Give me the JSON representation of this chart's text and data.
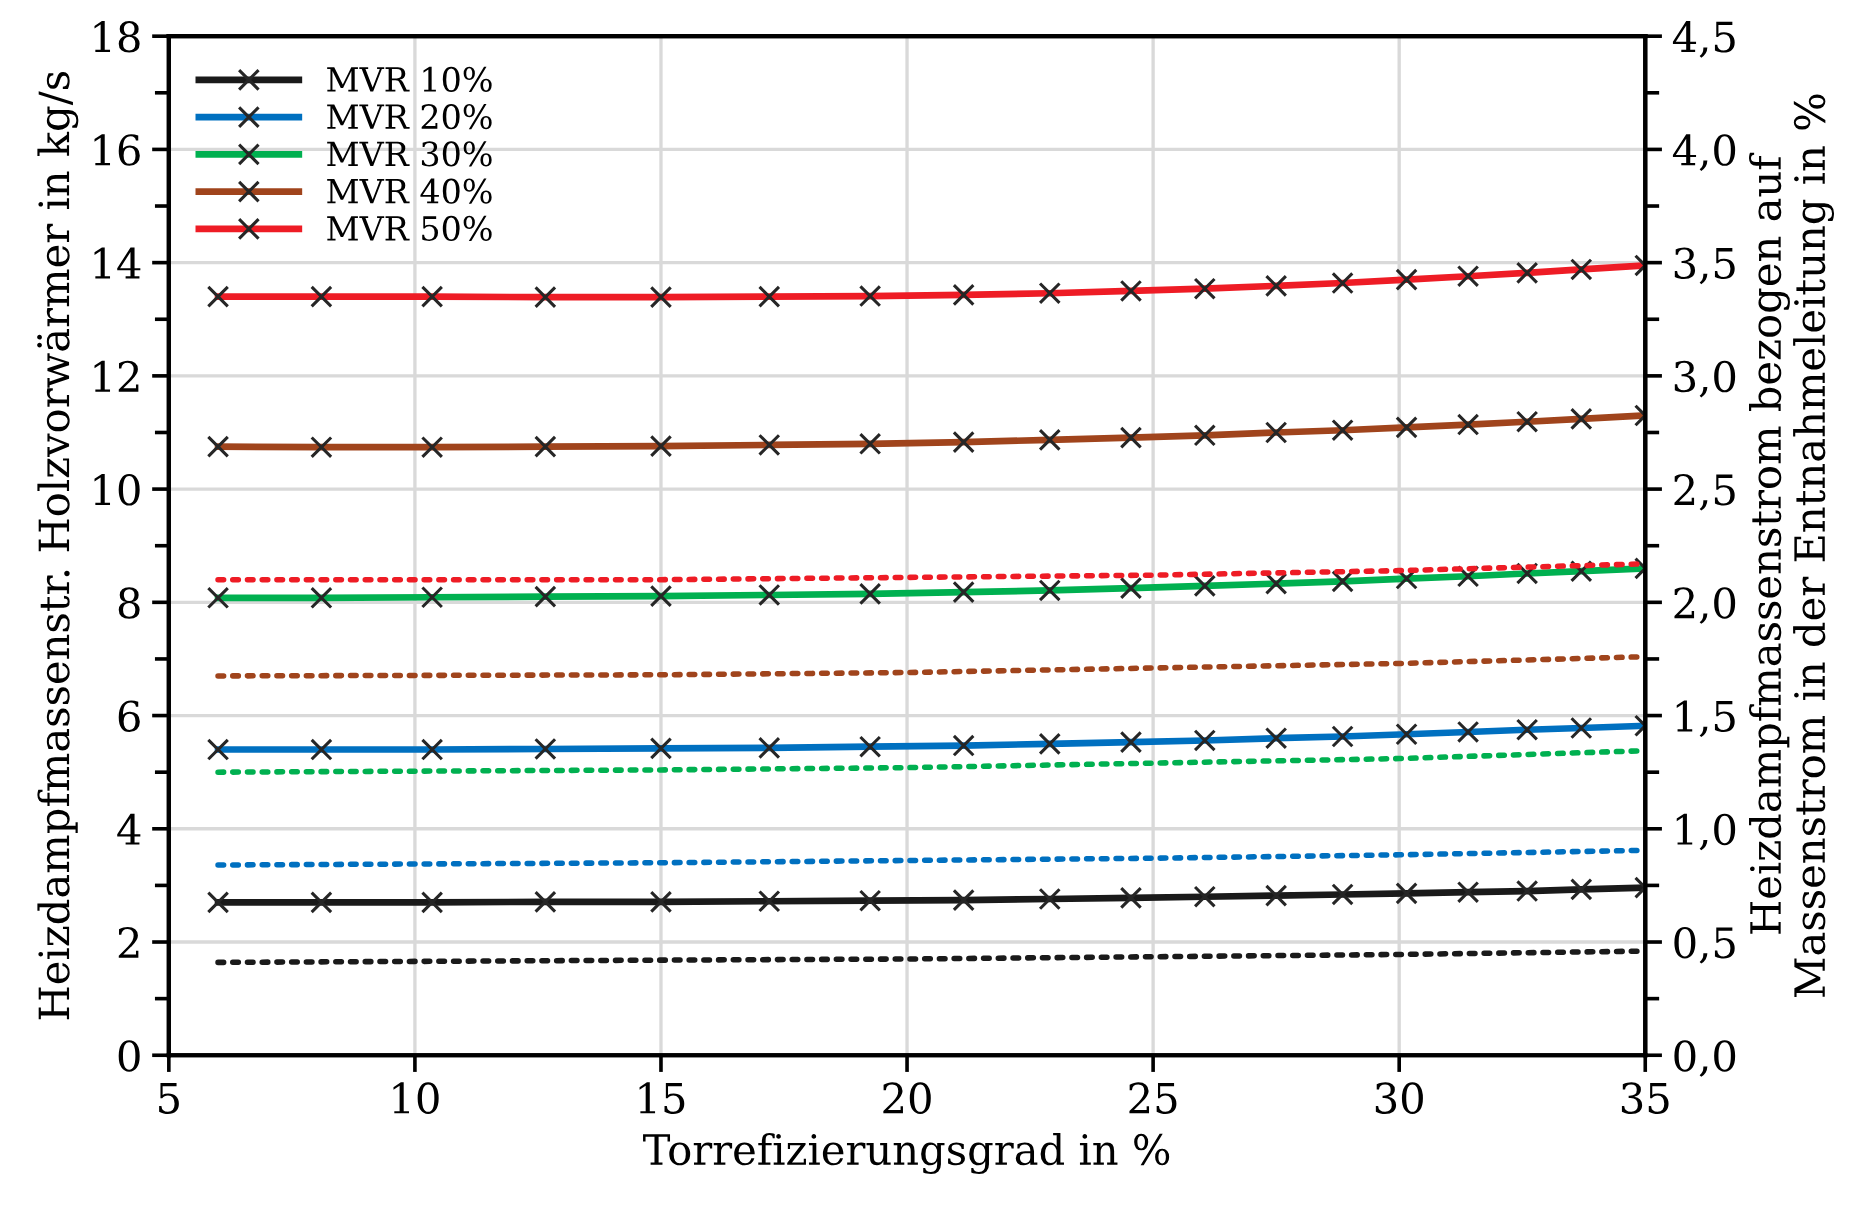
{
  "chart_data": {
    "type": "line",
    "xlabel": "Torrefizierungsgrad in %",
    "ylabel": "Heizdampfmassenstr. Holzvorwärmer in kg/s",
    "y2label": "Heizdampfmassenstrom bezogen auf\nMassenstrom in der Entnahmeleitung in %",
    "xlim": [
      5,
      35
    ],
    "xticks": [
      5,
      10,
      15,
      20,
      25,
      30,
      35
    ],
    "ylim": [
      0,
      18
    ],
    "yticks": [
      0,
      {
        "value": 1,
        "label": null
      },
      2,
      {
        "value": 3,
        "label": null
      },
      4,
      {
        "value": 5,
        "label": null
      },
      6,
      {
        "value": 7,
        "label": null
      },
      8,
      {
        "value": 9,
        "label": null
      },
      10,
      {
        "value": 11,
        "label": null
      },
      12,
      {
        "value": 13,
        "label": null
      },
      14,
      {
        "value": 15,
        "label": null
      },
      16,
      {
        "value": 17,
        "label": null
      },
      18
    ],
    "y2lim": [
      0,
      4.5
    ],
    "y2ticks": [
      {
        "value": 0,
        "label": "0,0"
      },
      {
        "value": 0.25,
        "label": null
      },
      {
        "value": 0.5,
        "label": "0,5"
      },
      {
        "value": 0.75,
        "label": null
      },
      {
        "value": 1,
        "label": "1,0"
      },
      {
        "value": 1.25,
        "label": null
      },
      {
        "value": 1.5,
        "label": "1,5"
      },
      {
        "value": 1.75,
        "label": null
      },
      {
        "value": 2,
        "label": "2,0"
      },
      {
        "value": 2.25,
        "label": null
      },
      {
        "value": 2.5,
        "label": "2,5"
      },
      {
        "value": 2.75,
        "label": null
      },
      {
        "value": 3,
        "label": "3,0"
      },
      {
        "value": 3.25,
        "label": null
      },
      {
        "value": 3.5,
        "label": "3,5"
      },
      {
        "value": 3.75,
        "label": null
      },
      {
        "value": 4,
        "label": "4,0"
      },
      {
        "value": 4.25,
        "label": null
      },
      {
        "value": 4.5,
        "label": "4,5"
      }
    ],
    "x": [
      6,
      8.1,
      10.35,
      12.65,
      15,
      17.2,
      19.25,
      21.15,
      22.9,
      24.55,
      26.05,
      27.5,
      28.85,
      30.15,
      31.4,
      32.6,
      33.7,
      35
    ],
    "grid": true,
    "legend": "top left",
    "marker": "cross",
    "line_style": "solid",
    "series": [
      {
        "name": "MVR 10%",
        "color": "#1a1a1a",
        "values": [
          2.7,
          2.7,
          2.7,
          2.71,
          2.71,
          2.72,
          2.73,
          2.74,
          2.76,
          2.78,
          2.8,
          2.82,
          2.84,
          2.86,
          2.88,
          2.9,
          2.93,
          2.96
        ]
      },
      {
        "name": "MVR 20%",
        "color": "#0070c0",
        "values": [
          5.4,
          5.4,
          5.4,
          5.41,
          5.42,
          5.43,
          5.45,
          5.47,
          5.5,
          5.53,
          5.56,
          5.6,
          5.63,
          5.67,
          5.71,
          5.75,
          5.78,
          5.82
        ]
      },
      {
        "name": "MVR 30%",
        "color": "#00b050",
        "values": [
          8.08,
          8.08,
          8.09,
          8.1,
          8.11,
          8.13,
          8.15,
          8.18,
          8.21,
          8.25,
          8.29,
          8.33,
          8.37,
          8.42,
          8.46,
          8.51,
          8.55,
          8.6
        ]
      },
      {
        "name": "MVR 40%",
        "color": "#a0441c",
        "values": [
          10.75,
          10.74,
          10.74,
          10.75,
          10.76,
          10.78,
          10.8,
          10.83,
          10.87,
          10.91,
          10.95,
          11.0,
          11.04,
          11.09,
          11.14,
          11.19,
          11.24,
          11.3
        ]
      },
      {
        "name": "MVR 50%",
        "color": "#ee1c25",
        "values": [
          13.4,
          13.4,
          13.4,
          13.39,
          13.39,
          13.4,
          13.41,
          13.43,
          13.46,
          13.5,
          13.54,
          13.59,
          13.64,
          13.7,
          13.76,
          13.82,
          13.88,
          13.95
        ]
      },
      {
        "axis": "y2",
        "color": "#1a1a1a",
        "marker": "none",
        "line_style": "dotted",
        "x": [
          6,
          15,
          20,
          25,
          30,
          35
        ],
        "values": [
          0.41,
          0.42,
          0.425,
          0.435,
          0.445,
          0.46
        ]
      },
      {
        "axis": "y2",
        "color": "#0070c0",
        "marker": "none",
        "line_style": "dotted",
        "x": [
          6,
          15,
          20,
          25,
          30,
          35
        ],
        "values": [
          0.84,
          0.85,
          0.86,
          0.87,
          0.885,
          0.905
        ]
      },
      {
        "axis": "y2",
        "color": "#00b050",
        "marker": "none",
        "line_style": "dotted",
        "x": [
          6,
          15,
          20,
          25,
          30,
          35
        ],
        "values": [
          1.25,
          1.26,
          1.27,
          1.29,
          1.31,
          1.345
        ]
      },
      {
        "axis": "y2",
        "color": "#a0441c",
        "marker": "none",
        "line_style": "dotted",
        "x": [
          6,
          15,
          20,
          25,
          30,
          35
        ],
        "values": [
          1.675,
          1.68,
          1.69,
          1.71,
          1.73,
          1.76
        ]
      },
      {
        "axis": "y2",
        "color": "#ee1c25",
        "marker": "none",
        "line_style": "dotted",
        "x": [
          6,
          15,
          20,
          25,
          30,
          35
        ],
        "values": [
          2.1,
          2.1,
          2.11,
          2.12,
          2.14,
          2.17
        ]
      }
    ]
  }
}
